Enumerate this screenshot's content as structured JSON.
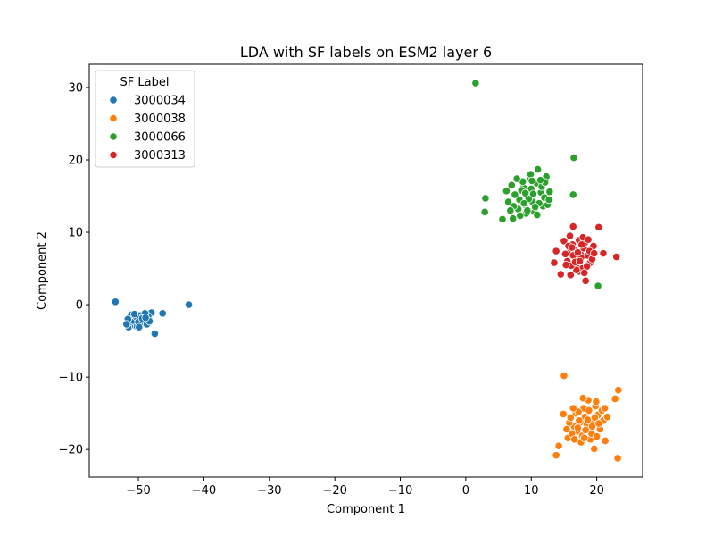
{
  "chart_data": {
    "type": "scatter",
    "title": "LDA with SF labels on ESM2 layer 6",
    "xlabel": "Component 1",
    "ylabel": "Component 2",
    "xlim": [
      -57.5,
      27
    ],
    "ylim": [
      -23.8,
      33.2
    ],
    "xticks": [
      -50,
      -40,
      -30,
      -20,
      -10,
      0,
      10,
      20
    ],
    "yticks": [
      -20,
      -10,
      0,
      10,
      20,
      30
    ],
    "legend": {
      "title": "SF Label",
      "placement": "top-left"
    },
    "grid": false,
    "series": [
      {
        "name": "3000034",
        "color": "#1f77b4",
        "points": [
          [
            -53.5,
            0.4
          ],
          [
            -42.3,
            0.0
          ],
          [
            -47.5,
            -4.0
          ],
          [
            -46.3,
            -1.2
          ],
          [
            -48.0,
            -1.1
          ],
          [
            -51.5,
            -3.1
          ],
          [
            -50.0,
            -2.0
          ],
          [
            -49.2,
            -2.5
          ],
          [
            -51.0,
            -1.8
          ],
          [
            -50.5,
            -2.9
          ],
          [
            -49.8,
            -1.5
          ],
          [
            -48.8,
            -2.1
          ],
          [
            -51.3,
            -2.4
          ],
          [
            -50.2,
            -3.0
          ],
          [
            -49.5,
            -2.6
          ],
          [
            -48.5,
            -1.6
          ],
          [
            -50.8,
            -2.2
          ],
          [
            -51.1,
            -1.4
          ],
          [
            -49.0,
            -1.2
          ],
          [
            -50.3,
            -1.7
          ],
          [
            -49.7,
            -2.8
          ],
          [
            -48.7,
            -2.7
          ],
          [
            -51.6,
            -2.0
          ],
          [
            -50.0,
            -2.4
          ],
          [
            -49.4,
            -1.9
          ],
          [
            -50.6,
            -1.3
          ],
          [
            -48.3,
            -2.3
          ],
          [
            -51.8,
            -2.7
          ],
          [
            -49.9,
            -3.1
          ],
          [
            -48.9,
            -1.8
          ]
        ]
      },
      {
        "name": "3000038",
        "color": "#ff7f0e",
        "points": [
          [
            15.0,
            -9.8
          ],
          [
            23.3,
            -11.8
          ],
          [
            22.8,
            -13.0
          ],
          [
            14.2,
            -19.5
          ],
          [
            13.8,
            -20.8
          ],
          [
            23.2,
            -21.2
          ],
          [
            21.3,
            -18.8
          ],
          [
            19.6,
            -19.9
          ],
          [
            15.6,
            -18.4
          ],
          [
            14.9,
            -15.1
          ],
          [
            17.5,
            -16.2
          ],
          [
            18.2,
            -15.5
          ],
          [
            18.9,
            -17.0
          ],
          [
            17.0,
            -17.5
          ],
          [
            19.5,
            -16.0
          ],
          [
            16.5,
            -16.8
          ],
          [
            18.0,
            -14.3
          ],
          [
            20.2,
            -15.2
          ],
          [
            17.8,
            -18.1
          ],
          [
            19.0,
            -18.6
          ],
          [
            16.8,
            -15.0
          ],
          [
            18.5,
            -16.5
          ],
          [
            20.5,
            -17.2
          ],
          [
            17.2,
            -14.8
          ],
          [
            19.8,
            -14.0
          ],
          [
            16.2,
            -17.8
          ],
          [
            18.7,
            -13.2
          ],
          [
            21.0,
            -16.0
          ],
          [
            15.8,
            -16.3
          ],
          [
            19.2,
            -17.8
          ],
          [
            17.6,
            -19.0
          ],
          [
            20.8,
            -14.6
          ],
          [
            16.0,
            -15.6
          ],
          [
            18.3,
            -17.3
          ],
          [
            19.7,
            -15.6
          ],
          [
            17.3,
            -16.0
          ],
          [
            18.8,
            -14.6
          ],
          [
            20.0,
            -18.2
          ],
          [
            16.6,
            -18.6
          ],
          [
            21.6,
            -15.5
          ],
          [
            17.9,
            -12.9
          ],
          [
            19.3,
            -16.8
          ],
          [
            16.4,
            -14.3
          ],
          [
            18.1,
            -18.4
          ],
          [
            20.3,
            -16.4
          ],
          [
            17.1,
            -17.0
          ],
          [
            19.9,
            -13.4
          ],
          [
            18.6,
            -15.9
          ],
          [
            15.4,
            -17.2
          ],
          [
            21.2,
            -14.3
          ]
        ]
      },
      {
        "name": "3000066",
        "color": "#2ca02c",
        "points": [
          [
            1.5,
            30.6
          ],
          [
            16.5,
            20.3
          ],
          [
            16.4,
            15.2
          ],
          [
            20.2,
            2.6
          ],
          [
            3.0,
            14.7
          ],
          [
            2.9,
            12.8
          ],
          [
            5.6,
            11.8
          ],
          [
            7.2,
            11.9
          ],
          [
            12.8,
            15.6
          ],
          [
            12.3,
            17.7
          ],
          [
            11.0,
            18.7
          ],
          [
            9.5,
            15.0
          ],
          [
            10.2,
            14.2
          ],
          [
            8.8,
            16.2
          ],
          [
            11.5,
            15.5
          ],
          [
            9.0,
            13.8
          ],
          [
            10.8,
            16.8
          ],
          [
            8.2,
            14.5
          ],
          [
            11.8,
            13.6
          ],
          [
            9.8,
            17.5
          ],
          [
            10.5,
            12.8
          ],
          [
            8.5,
            15.8
          ],
          [
            12.0,
            14.8
          ],
          [
            9.2,
            12.6
          ],
          [
            7.5,
            15.2
          ],
          [
            10.0,
            16.0
          ],
          [
            11.2,
            14.0
          ],
          [
            8.0,
            13.2
          ],
          [
            9.6,
            14.6
          ],
          [
            12.5,
            13.8
          ],
          [
            7.0,
            16.5
          ],
          [
            10.3,
            15.3
          ],
          [
            8.7,
            17.0
          ],
          [
            11.6,
            16.3
          ],
          [
            9.4,
            13.0
          ],
          [
            6.5,
            14.2
          ],
          [
            10.9,
            12.4
          ],
          [
            7.8,
            17.4
          ],
          [
            12.1,
            16.9
          ],
          [
            9.1,
            15.4
          ],
          [
            10.6,
            13.5
          ],
          [
            8.3,
            12.3
          ],
          [
            11.4,
            17.2
          ],
          [
            6.2,
            15.7
          ],
          [
            9.9,
            18.0
          ],
          [
            7.3,
            13.6
          ],
          [
            12.7,
            14.5
          ],
          [
            8.9,
            14.0
          ],
          [
            10.1,
            17.1
          ],
          [
            6.8,
            13.0
          ]
        ]
      },
      {
        "name": "3000313",
        "color": "#d62728",
        "points": [
          [
            23.0,
            6.6
          ],
          [
            20.3,
            10.7
          ],
          [
            16.4,
            10.8
          ],
          [
            21.0,
            7.1
          ],
          [
            13.8,
            7.4
          ],
          [
            13.5,
            5.8
          ],
          [
            14.5,
            4.2
          ],
          [
            16.0,
            4.1
          ],
          [
            17.2,
            4.6
          ],
          [
            18.3,
            3.3
          ],
          [
            19.5,
            8.1
          ],
          [
            15.0,
            8.8
          ],
          [
            17.5,
            7.0
          ],
          [
            16.8,
            6.2
          ],
          [
            18.0,
            7.8
          ],
          [
            15.8,
            7.3
          ],
          [
            17.0,
            5.6
          ],
          [
            18.6,
            6.8
          ],
          [
            16.3,
            8.3
          ],
          [
            17.8,
            5.0
          ],
          [
            15.5,
            6.0
          ],
          [
            18.9,
            7.4
          ],
          [
            16.6,
            7.6
          ],
          [
            17.3,
            8.9
          ],
          [
            19.0,
            5.8
          ],
          [
            15.2,
            7.0
          ],
          [
            16.9,
            4.8
          ],
          [
            18.2,
            8.6
          ],
          [
            17.6,
            6.5
          ],
          [
            16.1,
            5.4
          ],
          [
            19.3,
            6.3
          ],
          [
            15.7,
            8.1
          ],
          [
            17.9,
            9.3
          ],
          [
            16.4,
            6.8
          ],
          [
            18.5,
            5.3
          ],
          [
            17.1,
            7.2
          ],
          [
            15.9,
            9.5
          ],
          [
            19.6,
            7.1
          ],
          [
            16.7,
            5.9
          ],
          [
            18.1,
            4.4
          ],
          [
            17.4,
            6.0
          ],
          [
            15.3,
            5.5
          ],
          [
            18.7,
            9.0
          ],
          [
            16.2,
            7.9
          ],
          [
            17.7,
            8.3
          ]
        ]
      }
    ]
  }
}
